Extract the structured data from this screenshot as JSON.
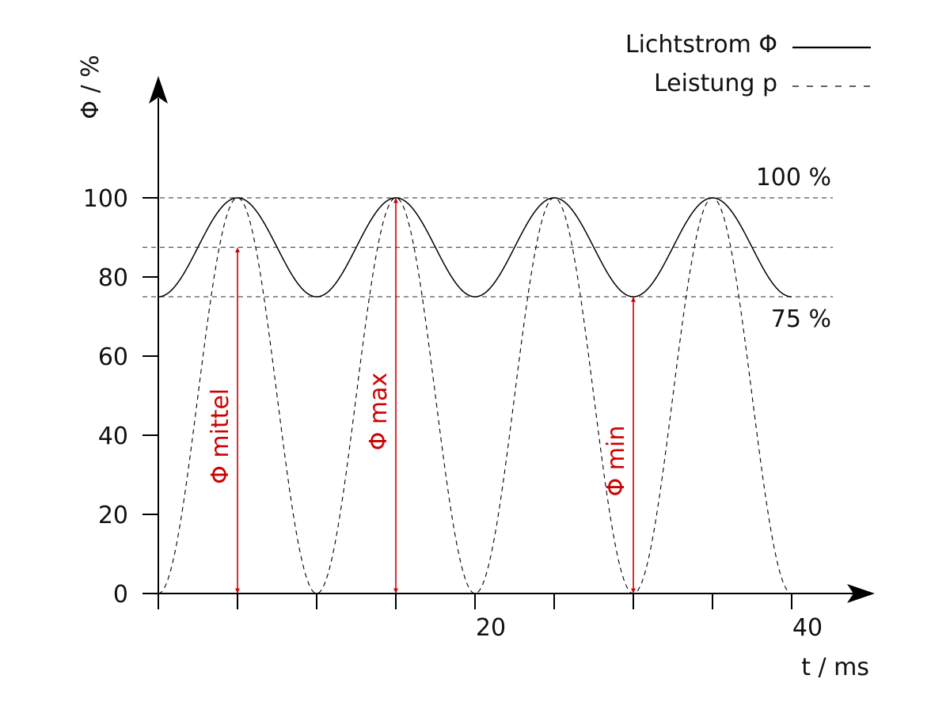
{
  "chart_data": {
    "type": "line",
    "xlabel": "t / ms",
    "ylabel": "Φ / %",
    "xlim": [
      0,
      45
    ],
    "ylim": [
      0,
      120
    ],
    "x_ticks": [
      {
        "value": 0,
        "label": ""
      },
      {
        "value": 5,
        "label": ""
      },
      {
        "value": 10,
        "label": ""
      },
      {
        "value": 15,
        "label": ""
      },
      {
        "value": 20,
        "label": "20"
      },
      {
        "value": 25,
        "label": ""
      },
      {
        "value": 30,
        "label": ""
      },
      {
        "value": 35,
        "label": ""
      },
      {
        "value": 40,
        "label": "40"
      }
    ],
    "y_ticks": [
      {
        "value": 0,
        "label": "0"
      },
      {
        "value": 20,
        "label": "20"
      },
      {
        "value": 40,
        "label": "40"
      },
      {
        "value": 60,
        "label": "60"
      },
      {
        "value": 80,
        "label": "80"
      },
      {
        "value": 100,
        "label": "100"
      }
    ],
    "legend": {
      "placement": "top-right"
    },
    "series": [
      {
        "name": "Lichtstrom Φ",
        "style": "solid",
        "color": "#000000",
        "x": [
          0,
          1,
          2,
          3,
          4,
          5,
          6,
          7,
          8,
          9,
          10,
          11,
          12,
          13,
          14,
          15,
          16,
          17,
          18,
          19,
          20,
          21,
          22,
          23,
          24,
          25,
          26,
          27,
          28,
          29,
          30,
          31,
          32,
          33,
          34,
          35,
          36,
          37,
          38,
          39,
          40
        ],
        "y": [
          75,
          77.4,
          84.0,
          91.0,
          97.6,
          100,
          97.6,
          91.0,
          84.0,
          77.4,
          75,
          77.4,
          84.0,
          91.0,
          97.6,
          100,
          97.6,
          91.0,
          84.0,
          77.4,
          75,
          77.4,
          84.0,
          91.0,
          97.6,
          100,
          97.6,
          91.0,
          84.0,
          77.4,
          75,
          77.4,
          84.0,
          91.0,
          97.6,
          100,
          97.6,
          91.0,
          84.0,
          77.4,
          75
        ]
      },
      {
        "name": "Leistung p",
        "style": "dashed",
        "color": "#000000",
        "x": [
          0,
          1,
          2,
          3,
          4,
          5,
          6,
          7,
          8,
          9,
          10,
          11,
          12,
          13,
          14,
          15,
          16,
          17,
          18,
          19,
          20,
          21,
          22,
          23,
          24,
          25,
          26,
          27,
          28,
          29,
          30,
          31,
          32,
          33,
          34,
          35,
          36,
          37,
          38,
          39,
          40
        ],
        "y": [
          0,
          9.5,
          34.5,
          65.5,
          90.5,
          100,
          90.5,
          65.5,
          34.5,
          9.5,
          0,
          9.5,
          34.5,
          65.5,
          90.5,
          100,
          90.5,
          65.5,
          34.5,
          9.5,
          0,
          9.5,
          34.5,
          65.5,
          90.5,
          100,
          90.5,
          65.5,
          34.5,
          9.5,
          0,
          9.5,
          34.5,
          65.5,
          90.5,
          100,
          90.5,
          65.5,
          34.5,
          9.5,
          0
        ]
      }
    ],
    "reference_lines": [
      {
        "y": 100,
        "label": "100 %",
        "label_position": "above"
      },
      {
        "y": 87.5,
        "label": "",
        "label_position": "none"
      },
      {
        "y": 75,
        "label": "75 %",
        "label_position": "below"
      }
    ],
    "annotations": [
      {
        "x": 5,
        "from": 0,
        "to": 87.5,
        "label": "Φ mittel",
        "color": "#cc0000"
      },
      {
        "x": 15,
        "from": 0,
        "to": 100,
        "label": "Φ max",
        "color": "#cc0000"
      },
      {
        "x": 30,
        "from": 0,
        "to": 75,
        "label": "Φ min",
        "color": "#cc0000"
      }
    ],
    "grid": false
  }
}
